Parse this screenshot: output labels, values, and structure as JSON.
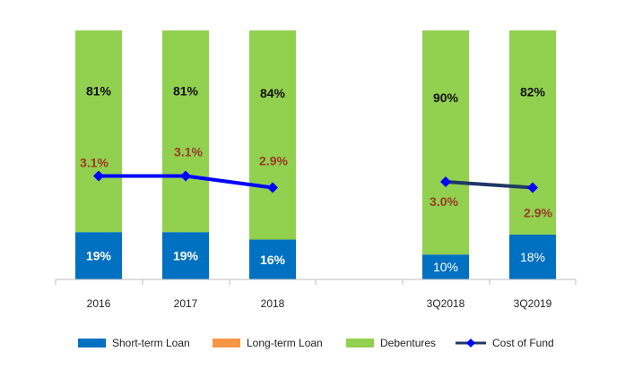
{
  "chart_data": {
    "type": "bar",
    "stacked": true,
    "categories": [
      "2016",
      "2017",
      "2018",
      "",
      "3Q2018",
      "3Q2019"
    ],
    "series": [
      {
        "name": "Short-term Loan",
        "values": [
          19,
          19,
          16,
          null,
          10,
          18
        ],
        "labels": [
          "19%",
          "19%",
          "16%",
          "",
          "10%",
          "18%"
        ],
        "color": "#0070c0"
      },
      {
        "name": "Long-term Loan",
        "values": [
          0,
          0,
          0,
          null,
          0,
          0
        ],
        "labels": [
          "",
          "",
          "",
          "",
          "",
          ""
        ],
        "color": "#f79646"
      },
      {
        "name": "Debentures",
        "values": [
          81,
          81,
          84,
          null,
          90,
          82
        ],
        "labels": [
          "81%",
          "81%",
          "84%",
          "",
          "90%",
          "82%"
        ],
        "color": "#92d050"
      }
    ],
    "line": {
      "name": "Cost of Fund",
      "values": [
        3.1,
        3.1,
        2.9,
        null,
        3.0,
        2.9
      ],
      "labels": [
        "3.1%",
        "3.1%",
        "2.9%",
        "",
        "3.0%",
        "2.9%"
      ],
      "color_primary": "#0000ff",
      "color_secondary": "#1f3864",
      "label_color": "#9b3b27"
    },
    "ylim": [
      0,
      100
    ],
    "legend_position": "bottom",
    "grid": false
  }
}
